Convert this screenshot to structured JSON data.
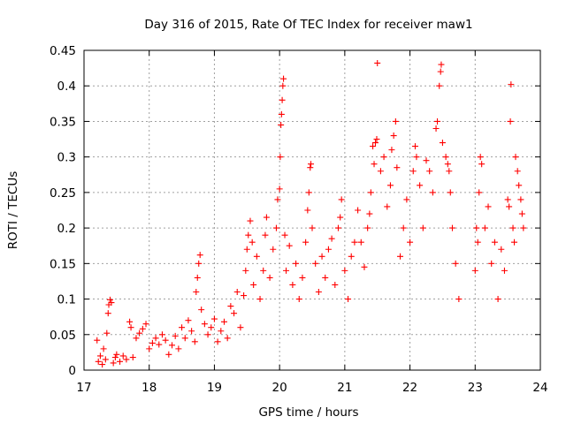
{
  "chart_data": {
    "type": "scatter",
    "title": "Day 316 of 2015, Rate Of TEC Index for receiver maw1",
    "xlabel": "GPS time / hours",
    "ylabel": "ROTI / TECUs",
    "xlim": [
      17,
      24
    ],
    "ylim": [
      0,
      0.45
    ],
    "x_ticks": [
      "17",
      "18",
      "19",
      "20",
      "21",
      "22",
      "23",
      "24"
    ],
    "y_ticks": [
      "0",
      "0.05",
      "0.1",
      "0.15",
      "0.2",
      "0.25",
      "0.3",
      "0.35",
      "0.4",
      "0.45"
    ],
    "grid": true,
    "marker": "+",
    "color": "#ff0000",
    "series": [
      {
        "name": "ROTI",
        "points": [
          [
            17.2,
            0.042
          ],
          [
            17.22,
            0.012
          ],
          [
            17.25,
            0.02
          ],
          [
            17.28,
            0.008
          ],
          [
            17.3,
            0.03
          ],
          [
            17.33,
            0.015
          ],
          [
            17.35,
            0.052
          ],
          [
            17.37,
            0.08
          ],
          [
            17.38,
            0.092
          ],
          [
            17.4,
            0.099
          ],
          [
            17.42,
            0.095
          ],
          [
            17.45,
            0.01
          ],
          [
            17.48,
            0.018
          ],
          [
            17.5,
            0.022
          ],
          [
            17.55,
            0.012
          ],
          [
            17.6,
            0.02
          ],
          [
            17.65,
            0.015
          ],
          [
            17.7,
            0.068
          ],
          [
            17.72,
            0.06
          ],
          [
            17.75,
            0.018
          ],
          [
            17.8,
            0.045
          ],
          [
            17.85,
            0.052
          ],
          [
            17.9,
            0.058
          ],
          [
            17.95,
            0.065
          ],
          [
            18.0,
            0.03
          ],
          [
            18.05,
            0.038
          ],
          [
            18.1,
            0.045
          ],
          [
            18.15,
            0.036
          ],
          [
            18.2,
            0.05
          ],
          [
            18.25,
            0.042
          ],
          [
            18.3,
            0.022
          ],
          [
            18.35,
            0.035
          ],
          [
            18.4,
            0.048
          ],
          [
            18.45,
            0.03
          ],
          [
            18.5,
            0.06
          ],
          [
            18.55,
            0.045
          ],
          [
            18.6,
            0.07
          ],
          [
            18.65,
            0.055
          ],
          [
            18.7,
            0.04
          ],
          [
            18.72,
            0.11
          ],
          [
            18.74,
            0.13
          ],
          [
            18.76,
            0.15
          ],
          [
            18.78,
            0.162
          ],
          [
            18.8,
            0.085
          ],
          [
            18.85,
            0.065
          ],
          [
            18.9,
            0.05
          ],
          [
            18.95,
            0.06
          ],
          [
            19.0,
            0.072
          ],
          [
            19.05,
            0.04
          ],
          [
            19.1,
            0.055
          ],
          [
            19.15,
            0.068
          ],
          [
            19.2,
            0.045
          ],
          [
            19.25,
            0.09
          ],
          [
            19.3,
            0.08
          ],
          [
            19.35,
            0.11
          ],
          [
            19.4,
            0.06
          ],
          [
            19.45,
            0.105
          ],
          [
            19.48,
            0.14
          ],
          [
            19.5,
            0.17
          ],
          [
            19.52,
            0.19
          ],
          [
            19.55,
            0.21
          ],
          [
            19.58,
            0.18
          ],
          [
            19.6,
            0.12
          ],
          [
            19.65,
            0.16
          ],
          [
            19.7,
            0.1
          ],
          [
            19.75,
            0.14
          ],
          [
            19.78,
            0.19
          ],
          [
            19.8,
            0.215
          ],
          [
            19.85,
            0.13
          ],
          [
            19.9,
            0.17
          ],
          [
            19.95,
            0.2
          ],
          [
            19.97,
            0.24
          ],
          [
            20.0,
            0.255
          ],
          [
            20.01,
            0.3
          ],
          [
            20.02,
            0.345
          ],
          [
            20.03,
            0.36
          ],
          [
            20.04,
            0.38
          ],
          [
            20.05,
            0.4
          ],
          [
            20.06,
            0.41
          ],
          [
            20.08,
            0.19
          ],
          [
            20.1,
            0.14
          ],
          [
            20.15,
            0.175
          ],
          [
            20.2,
            0.12
          ],
          [
            20.25,
            0.15
          ],
          [
            20.3,
            0.1
          ],
          [
            20.35,
            0.13
          ],
          [
            20.4,
            0.18
          ],
          [
            20.43,
            0.225
          ],
          [
            20.45,
            0.25
          ],
          [
            20.47,
            0.285
          ],
          [
            20.48,
            0.29
          ],
          [
            20.5,
            0.2
          ],
          [
            20.55,
            0.15
          ],
          [
            20.6,
            0.11
          ],
          [
            20.65,
            0.16
          ],
          [
            20.7,
            0.13
          ],
          [
            20.75,
            0.17
          ],
          [
            20.8,
            0.185
          ],
          [
            20.85,
            0.12
          ],
          [
            20.9,
            0.2
          ],
          [
            20.93,
            0.215
          ],
          [
            20.95,
            0.24
          ],
          [
            21.0,
            0.14
          ],
          [
            21.05,
            0.1
          ],
          [
            21.1,
            0.16
          ],
          [
            21.15,
            0.18
          ],
          [
            21.2,
            0.225
          ],
          [
            21.25,
            0.18
          ],
          [
            21.3,
            0.145
          ],
          [
            21.35,
            0.2
          ],
          [
            21.38,
            0.22
          ],
          [
            21.4,
            0.25
          ],
          [
            21.43,
            0.315
          ],
          [
            21.45,
            0.29
          ],
          [
            21.47,
            0.32
          ],
          [
            21.49,
            0.325
          ],
          [
            21.5,
            0.432
          ],
          [
            21.55,
            0.28
          ],
          [
            21.6,
            0.3
          ],
          [
            21.65,
            0.23
          ],
          [
            21.7,
            0.26
          ],
          [
            21.72,
            0.31
          ],
          [
            21.75,
            0.33
          ],
          [
            21.78,
            0.35
          ],
          [
            21.8,
            0.285
          ],
          [
            21.85,
            0.16
          ],
          [
            21.9,
            0.2
          ],
          [
            21.95,
            0.24
          ],
          [
            22.0,
            0.18
          ],
          [
            22.05,
            0.28
          ],
          [
            22.08,
            0.315
          ],
          [
            22.1,
            0.3
          ],
          [
            22.15,
            0.26
          ],
          [
            22.2,
            0.2
          ],
          [
            22.25,
            0.295
          ],
          [
            22.3,
            0.28
          ],
          [
            22.35,
            0.25
          ],
          [
            22.4,
            0.34
          ],
          [
            22.42,
            0.35
          ],
          [
            22.45,
            0.4
          ],
          [
            22.47,
            0.42
          ],
          [
            22.48,
            0.43
          ],
          [
            22.5,
            0.32
          ],
          [
            22.55,
            0.3
          ],
          [
            22.58,
            0.29
          ],
          [
            22.6,
            0.28
          ],
          [
            22.62,
            0.25
          ],
          [
            22.65,
            0.2
          ],
          [
            22.7,
            0.15
          ],
          [
            22.75,
            0.1
          ],
          [
            23.0,
            0.14
          ],
          [
            23.02,
            0.2
          ],
          [
            23.04,
            0.18
          ],
          [
            23.06,
            0.25
          ],
          [
            23.08,
            0.3
          ],
          [
            23.1,
            0.29
          ],
          [
            23.15,
            0.2
          ],
          [
            23.2,
            0.23
          ],
          [
            23.25,
            0.15
          ],
          [
            23.3,
            0.18
          ],
          [
            23.35,
            0.1
          ],
          [
            23.4,
            0.17
          ],
          [
            23.45,
            0.14
          ],
          [
            23.5,
            0.24
          ],
          [
            23.52,
            0.23
          ],
          [
            23.54,
            0.35
          ],
          [
            23.55,
            0.402
          ],
          [
            23.58,
            0.2
          ],
          [
            23.6,
            0.18
          ],
          [
            23.62,
            0.3
          ],
          [
            23.65,
            0.28
          ],
          [
            23.67,
            0.26
          ],
          [
            23.7,
            0.24
          ],
          [
            23.72,
            0.22
          ],
          [
            23.74,
            0.2
          ]
        ]
      }
    ]
  }
}
